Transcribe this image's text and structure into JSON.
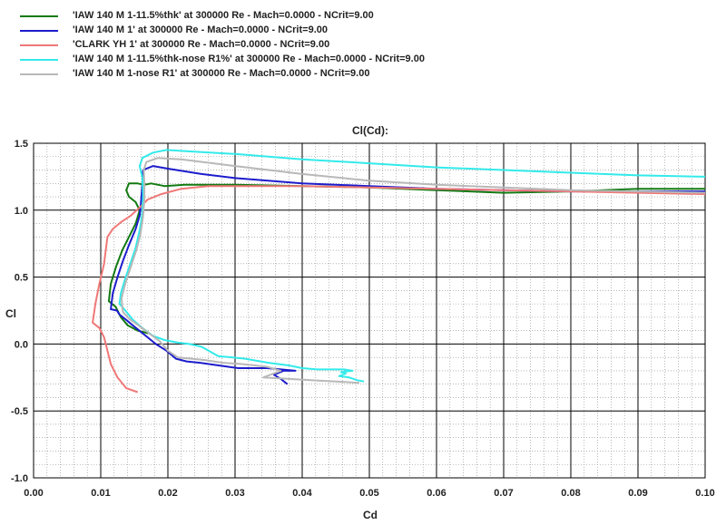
{
  "chart_data": {
    "type": "line",
    "title": "Cl(Cd):",
    "xlabel": "Cd",
    "ylabel": "Cl",
    "xlim": [
      0.0,
      0.1
    ],
    "ylim": [
      -1.0,
      1.5
    ],
    "xticks": [
      "0.00",
      "0.01",
      "0.02",
      "0.03",
      "0.04",
      "0.05",
      "0.06",
      "0.07",
      "0.08",
      "0.09",
      "0.10"
    ],
    "yticks": [
      "1.5",
      "1.0",
      "0.5",
      "0.0",
      "-0.5",
      "-1.0"
    ],
    "grid": true,
    "legend_position": "top-left",
    "series": [
      {
        "name": "'IAW 140 M 1-11.5%thk' at 300000 Re - Mach=0.0000 - NCrit=9.00",
        "color": "#127a12",
        "points": [
          [
            0.0171,
            0.08
          ],
          [
            0.0155,
            0.1
          ],
          [
            0.014,
            0.14
          ],
          [
            0.013,
            0.2
          ],
          [
            0.0122,
            0.28
          ],
          [
            0.0112,
            0.32
          ],
          [
            0.0115,
            0.45
          ],
          [
            0.0123,
            0.58
          ],
          [
            0.0132,
            0.7
          ],
          [
            0.0142,
            0.8
          ],
          [
            0.0152,
            0.9
          ],
          [
            0.0158,
            1.0
          ],
          [
            0.0152,
            1.06
          ],
          [
            0.0142,
            1.1
          ],
          [
            0.0138,
            1.15
          ],
          [
            0.0142,
            1.2
          ],
          [
            0.0155,
            1.2
          ],
          [
            0.0165,
            1.19
          ],
          [
            0.0175,
            1.2
          ],
          [
            0.0195,
            1.18
          ],
          [
            0.0225,
            1.19
          ],
          [
            0.03,
            1.19
          ],
          [
            0.04,
            1.18
          ],
          [
            0.05,
            1.17
          ],
          [
            0.06,
            1.15
          ],
          [
            0.07,
            1.13
          ],
          [
            0.08,
            1.14
          ],
          [
            0.09,
            1.16
          ],
          [
            0.1,
            1.16
          ]
        ]
      },
      {
        "name": "'IAW 140 M 1' at 300000 Re - Mach=0.0000 - NCrit=9.00",
        "color": "#1c1ccc",
        "points": [
          [
            0.0378,
            -0.3
          ],
          [
            0.0368,
            -0.26
          ],
          [
            0.0358,
            -0.23
          ],
          [
            0.0372,
            -0.2
          ],
          [
            0.039,
            -0.2
          ],
          [
            0.0348,
            -0.18
          ],
          [
            0.0305,
            -0.18
          ],
          [
            0.029,
            -0.17
          ],
          [
            0.0248,
            -0.14
          ],
          [
            0.0228,
            -0.13
          ],
          [
            0.0212,
            -0.11
          ],
          [
            0.0198,
            -0.05
          ],
          [
            0.0182,
            0.0
          ],
          [
            0.0165,
            0.07
          ],
          [
            0.015,
            0.13
          ],
          [
            0.0138,
            0.18
          ],
          [
            0.0128,
            0.22
          ],
          [
            0.0124,
            0.25
          ],
          [
            0.0115,
            0.26
          ],
          [
            0.0118,
            0.38
          ],
          [
            0.0125,
            0.5
          ],
          [
            0.0133,
            0.62
          ],
          [
            0.0142,
            0.74
          ],
          [
            0.0152,
            0.86
          ],
          [
            0.0158,
            0.96
          ],
          [
            0.016,
            1.06
          ],
          [
            0.0162,
            1.2
          ],
          [
            0.0163,
            1.3
          ],
          [
            0.0178,
            1.33
          ],
          [
            0.02,
            1.31
          ],
          [
            0.025,
            1.27
          ],
          [
            0.03,
            1.24
          ],
          [
            0.04,
            1.2
          ],
          [
            0.05,
            1.18
          ],
          [
            0.06,
            1.16
          ],
          [
            0.07,
            1.15
          ],
          [
            0.08,
            1.14
          ],
          [
            0.09,
            1.14
          ],
          [
            0.1,
            1.14
          ]
        ]
      },
      {
        "name": "'CLARK YH 1' at 300000 Re - Mach=0.0000 - NCrit=9.00",
        "color": "#f07878",
        "points": [
          [
            0.0155,
            -0.36
          ],
          [
            0.0138,
            -0.33
          ],
          [
            0.0125,
            -0.25
          ],
          [
            0.0115,
            -0.15
          ],
          [
            0.011,
            -0.05
          ],
          [
            0.0105,
            0.05
          ],
          [
            0.0098,
            0.12
          ],
          [
            0.0088,
            0.16
          ],
          [
            0.0092,
            0.3
          ],
          [
            0.0098,
            0.45
          ],
          [
            0.0105,
            0.6
          ],
          [
            0.011,
            0.8
          ],
          [
            0.0118,
            0.86
          ],
          [
            0.013,
            0.91
          ],
          [
            0.0145,
            0.96
          ],
          [
            0.0158,
            1.02
          ],
          [
            0.017,
            1.08
          ],
          [
            0.019,
            1.12
          ],
          [
            0.022,
            1.16
          ],
          [
            0.026,
            1.18
          ],
          [
            0.03,
            1.18
          ],
          [
            0.04,
            1.18
          ],
          [
            0.05,
            1.17
          ],
          [
            0.06,
            1.16
          ],
          [
            0.07,
            1.15
          ],
          [
            0.08,
            1.14
          ],
          [
            0.09,
            1.13
          ],
          [
            0.1,
            1.12
          ]
        ]
      },
      {
        "name": "'IAW 140 M 1-11.5%thk-nose R1%' at 300000 Re - Mach=0.0000 - NCrit=9.00",
        "color": "#33eaea",
        "points": [
          [
            0.0492,
            -0.28
          ],
          [
            0.0482,
            -0.27
          ],
          [
            0.047,
            -0.25
          ],
          [
            0.0455,
            -0.24
          ],
          [
            0.0465,
            -0.22
          ],
          [
            0.0458,
            -0.21
          ],
          [
            0.0475,
            -0.2
          ],
          [
            0.0462,
            -0.19
          ],
          [
            0.0438,
            -0.19
          ],
          [
            0.0422,
            -0.19
          ],
          [
            0.04,
            -0.18
          ],
          [
            0.038,
            -0.16
          ],
          [
            0.035,
            -0.14
          ],
          [
            0.0315,
            -0.11
          ],
          [
            0.0275,
            -0.09
          ],
          [
            0.025,
            -0.02
          ],
          [
            0.0232,
            0.0
          ],
          [
            0.0215,
            0.01
          ],
          [
            0.0195,
            0.03
          ],
          [
            0.0178,
            0.06
          ],
          [
            0.0162,
            0.12
          ],
          [
            0.0148,
            0.18
          ],
          [
            0.0135,
            0.26
          ],
          [
            0.0128,
            0.3
          ],
          [
            0.013,
            0.38
          ],
          [
            0.0136,
            0.48
          ],
          [
            0.0144,
            0.6
          ],
          [
            0.0152,
            0.72
          ],
          [
            0.0158,
            0.85
          ],
          [
            0.0162,
            0.98
          ],
          [
            0.0163,
            1.12
          ],
          [
            0.0162,
            1.24
          ],
          [
            0.0158,
            1.33
          ],
          [
            0.0162,
            1.39
          ],
          [
            0.0178,
            1.43
          ],
          [
            0.0198,
            1.45
          ],
          [
            0.023,
            1.44
          ],
          [
            0.03,
            1.42
          ],
          [
            0.04,
            1.38
          ],
          [
            0.05,
            1.35
          ],
          [
            0.06,
            1.32
          ],
          [
            0.07,
            1.3
          ],
          [
            0.08,
            1.28
          ],
          [
            0.09,
            1.26
          ],
          [
            0.1,
            1.25
          ]
        ]
      },
      {
        "name": "'IAW 140 M 1-nose R1' at 300000 Re - Mach=0.0000 - NCrit=9.00",
        "color": "#b8b8b8",
        "points": [
          [
            0.0485,
            -0.29
          ],
          [
            0.045,
            -0.28
          ],
          [
            0.0412,
            -0.27
          ],
          [
            0.0378,
            -0.26
          ],
          [
            0.0342,
            -0.25
          ],
          [
            0.0368,
            -0.2
          ],
          [
            0.0348,
            -0.17
          ],
          [
            0.031,
            -0.15
          ],
          [
            0.0282,
            -0.14
          ],
          [
            0.0255,
            -0.12
          ],
          [
            0.0235,
            -0.11
          ],
          [
            0.0215,
            -0.1
          ],
          [
            0.02,
            -0.05
          ],
          [
            0.0188,
            0.02
          ],
          [
            0.0172,
            0.08
          ],
          [
            0.0156,
            0.14
          ],
          [
            0.0142,
            0.19
          ],
          [
            0.0133,
            0.24
          ],
          [
            0.0131,
            0.34
          ],
          [
            0.0137,
            0.46
          ],
          [
            0.0145,
            0.58
          ],
          [
            0.0153,
            0.7
          ],
          [
            0.0159,
            0.82
          ],
          [
            0.0163,
            0.95
          ],
          [
            0.0165,
            1.08
          ],
          [
            0.0165,
            1.2
          ],
          [
            0.0164,
            1.3
          ],
          [
            0.0168,
            1.36
          ],
          [
            0.0185,
            1.39
          ],
          [
            0.022,
            1.38
          ],
          [
            0.03,
            1.33
          ],
          [
            0.04,
            1.27
          ],
          [
            0.05,
            1.22
          ],
          [
            0.06,
            1.19
          ],
          [
            0.07,
            1.17
          ],
          [
            0.08,
            1.15
          ],
          [
            0.09,
            1.14
          ],
          [
            0.1,
            1.13
          ]
        ]
      }
    ]
  }
}
